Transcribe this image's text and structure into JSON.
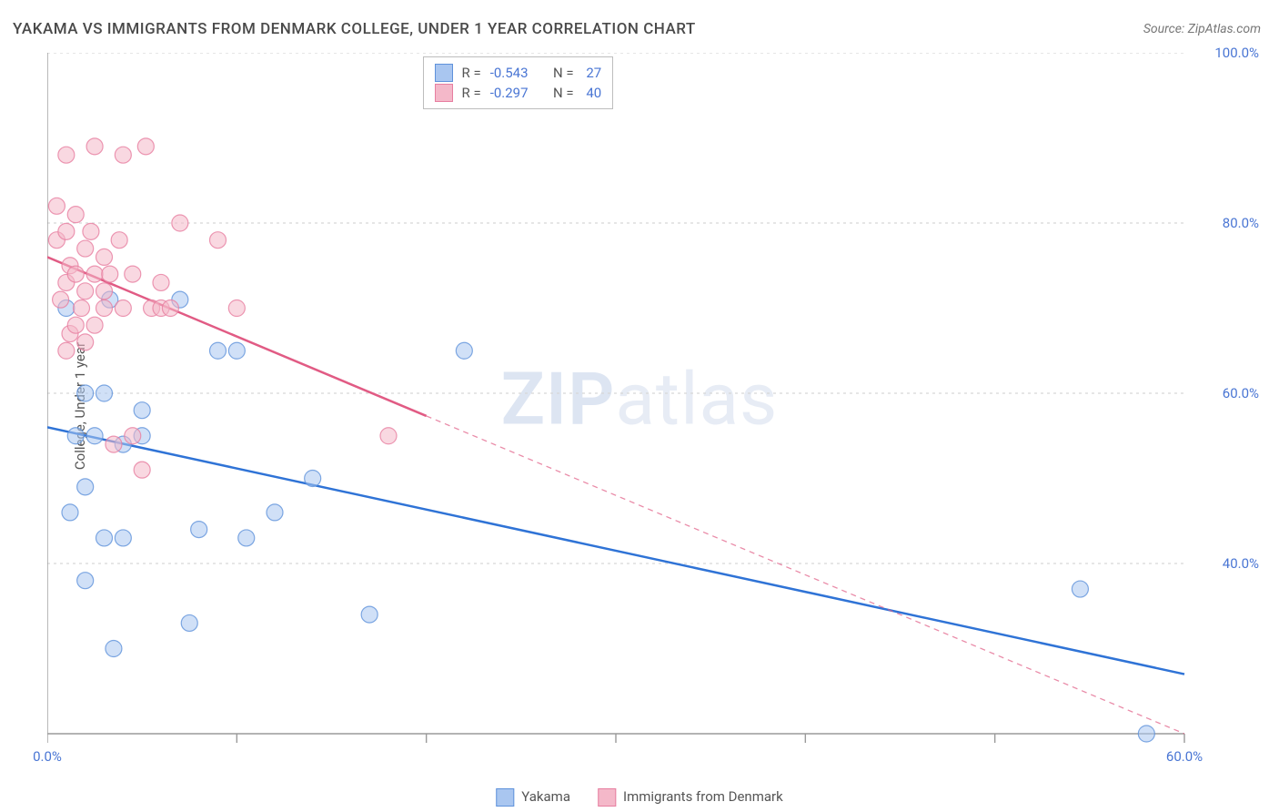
{
  "title": "YAKAMA VS IMMIGRANTS FROM DENMARK COLLEGE, UNDER 1 YEAR CORRELATION CHART",
  "source": "Source: ZipAtlas.com",
  "ylabel": "College, Under 1 year",
  "watermark": {
    "zip": "ZIP",
    "atlas": "atlas"
  },
  "chart": {
    "type": "scatter",
    "xlim": [
      0,
      60
    ],
    "ylim": [
      20,
      100
    ],
    "xticks": [
      0,
      10,
      20,
      30,
      40,
      50,
      60
    ],
    "xtick_labels": [
      "0.0%",
      "",
      "",
      "",
      "",
      "",
      "60.0%"
    ],
    "yticks": [
      40,
      60,
      80,
      100
    ],
    "ytick_labels": [
      "40.0%",
      "60.0%",
      "80.0%",
      "100.0%"
    ],
    "grid_color": "#d7d7d7",
    "grid_dash": "3,4",
    "axis_color": "#9a9a9a",
    "background_color": "#ffffff",
    "marker_radius": 9,
    "marker_opacity": 0.55,
    "marker_stroke_width": 1.2,
    "line_width": 2.5,
    "series": [
      {
        "name": "Yakama",
        "color_fill": "#a9c6f0",
        "color_stroke": "#5f92db",
        "line_color": "#2f73d6",
        "R": "-0.543",
        "N": "27",
        "trend": {
          "x1": 0,
          "y1": 56,
          "x2": 60,
          "y2": 27,
          "solid_until_x": 60
        },
        "points": [
          {
            "x": 1,
            "y": 70
          },
          {
            "x": 1.2,
            "y": 46
          },
          {
            "x": 1.5,
            "y": 55
          },
          {
            "x": 2,
            "y": 38
          },
          {
            "x": 2,
            "y": 49
          },
          {
            "x": 2,
            "y": 60
          },
          {
            "x": 2.5,
            "y": 55
          },
          {
            "x": 3,
            "y": 60
          },
          {
            "x": 3,
            "y": 43
          },
          {
            "x": 3.3,
            "y": 71
          },
          {
            "x": 3.5,
            "y": 30
          },
          {
            "x": 4,
            "y": 43
          },
          {
            "x": 4,
            "y": 54
          },
          {
            "x": 5,
            "y": 58
          },
          {
            "x": 5,
            "y": 55
          },
          {
            "x": 7,
            "y": 71
          },
          {
            "x": 7.5,
            "y": 33
          },
          {
            "x": 8,
            "y": 44
          },
          {
            "x": 9,
            "y": 65
          },
          {
            "x": 10,
            "y": 65
          },
          {
            "x": 10.5,
            "y": 43
          },
          {
            "x": 12,
            "y": 46
          },
          {
            "x": 14,
            "y": 50
          },
          {
            "x": 17,
            "y": 34
          },
          {
            "x": 22,
            "y": 65
          },
          {
            "x": 54.5,
            "y": 37
          },
          {
            "x": 58,
            "y": 20
          }
        ]
      },
      {
        "name": "Immigrants from Denmark",
        "color_fill": "#f4b8c9",
        "color_stroke": "#e77ea0",
        "line_color": "#e15b84",
        "R": "-0.297",
        "N": "40",
        "trend": {
          "x1": 0,
          "y1": 76,
          "x2": 60,
          "y2": 20,
          "solid_until_x": 20
        },
        "points": [
          {
            "x": 0.5,
            "y": 82
          },
          {
            "x": 0.5,
            "y": 78
          },
          {
            "x": 0.7,
            "y": 71
          },
          {
            "x": 1,
            "y": 65
          },
          {
            "x": 1,
            "y": 79
          },
          {
            "x": 1,
            "y": 73
          },
          {
            "x": 1,
            "y": 88
          },
          {
            "x": 1.2,
            "y": 67
          },
          {
            "x": 1.2,
            "y": 75
          },
          {
            "x": 1.5,
            "y": 81
          },
          {
            "x": 1.5,
            "y": 68
          },
          {
            "x": 1.5,
            "y": 74
          },
          {
            "x": 1.8,
            "y": 70
          },
          {
            "x": 2,
            "y": 77
          },
          {
            "x": 2,
            "y": 66
          },
          {
            "x": 2,
            "y": 72
          },
          {
            "x": 2.3,
            "y": 79
          },
          {
            "x": 2.5,
            "y": 68
          },
          {
            "x": 2.5,
            "y": 74
          },
          {
            "x": 2.5,
            "y": 89
          },
          {
            "x": 3,
            "y": 76
          },
          {
            "x": 3,
            "y": 70
          },
          {
            "x": 3,
            "y": 72
          },
          {
            "x": 3.3,
            "y": 74
          },
          {
            "x": 3.5,
            "y": 54
          },
          {
            "x": 3.8,
            "y": 78
          },
          {
            "x": 4,
            "y": 70
          },
          {
            "x": 4,
            "y": 88
          },
          {
            "x": 4.5,
            "y": 55
          },
          {
            "x": 4.5,
            "y": 74
          },
          {
            "x": 5,
            "y": 51
          },
          {
            "x": 5.2,
            "y": 89
          },
          {
            "x": 5.5,
            "y": 70
          },
          {
            "x": 6,
            "y": 73
          },
          {
            "x": 6,
            "y": 70
          },
          {
            "x": 6.5,
            "y": 70
          },
          {
            "x": 7,
            "y": 80
          },
          {
            "x": 9,
            "y": 78
          },
          {
            "x": 10,
            "y": 70
          },
          {
            "x": 18,
            "y": 55
          }
        ]
      }
    ],
    "legend_top": {
      "r_label": "R =",
      "n_label": "N ="
    },
    "legend_bottom": [
      {
        "label": "Yakama",
        "fill": "#a9c6f0",
        "stroke": "#5f92db"
      },
      {
        "label": "Immigrants from Denmark",
        "fill": "#f4b8c9",
        "stroke": "#e77ea0"
      }
    ]
  }
}
